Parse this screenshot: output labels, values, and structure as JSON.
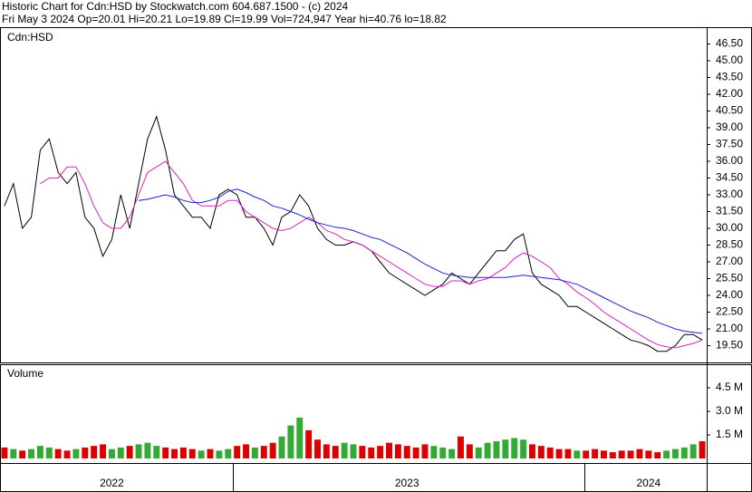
{
  "chart_data": [
    {
      "type": "line",
      "title": "Historic Chart for Cdn:HSD by Stockwatch.com 604.687.1500 - (c) 2024",
      "subtitle": "Fri May  3 2024  Op=20.01  Hi=20.21  Lo=19.89  Cl=19.99  Vol=724,947  Year hi=40.76  lo=18.82",
      "categories": [
        null,
        null,
        null,
        null,
        null,
        null,
        null,
        null,
        null,
        null,
        null,
        null,
        "2022",
        null,
        null,
        null,
        null,
        null,
        null,
        null,
        null,
        null,
        null,
        null,
        null,
        null,
        null,
        null,
        null,
        null,
        null,
        null,
        null,
        null,
        null,
        null,
        null,
        null,
        null,
        null,
        null,
        null,
        null,
        null,
        null,
        "2023",
        null,
        null,
        null,
        null,
        null,
        null,
        null,
        null,
        null,
        null,
        null,
        null,
        null,
        null,
        null,
        null,
        null,
        null,
        null,
        null,
        null,
        null,
        null,
        null,
        null,
        null,
        "2024",
        null,
        null,
        null,
        null,
        null,
        null
      ],
      "series": [
        {
          "name": "Cdn:HSD",
          "color": "#000000",
          "values": [
            32,
            34,
            30,
            31,
            37,
            38,
            35,
            34,
            35,
            31,
            30,
            27.5,
            29,
            33,
            30,
            34,
            38,
            40,
            37,
            33,
            32,
            31,
            31,
            30,
            33,
            33.5,
            33,
            31,
            31,
            30,
            28.5,
            31,
            31.5,
            33,
            32,
            30,
            29,
            28.5,
            28.5,
            28.8,
            28.5,
            28,
            27,
            26,
            25.5,
            25,
            24.5,
            24,
            24.5,
            25,
            26,
            25.5,
            25,
            26,
            27,
            28,
            28,
            29,
            29.5,
            26,
            25,
            24.5,
            24,
            23,
            23,
            22.5,
            22,
            21.5,
            21,
            20.5,
            20,
            19.8,
            19.5,
            19,
            19,
            19.5,
            20.5,
            20.5,
            20
          ]
        },
        {
          "color": "#e020c0",
          "values": [
            null,
            null,
            null,
            null,
            34,
            34.5,
            34.5,
            35.5,
            35.5,
            34,
            32,
            30.5,
            30,
            30,
            31,
            33,
            35,
            35.5,
            36,
            35,
            34,
            32.5,
            32,
            32,
            32,
            32.5,
            32.5,
            31.5,
            31,
            30.5,
            30,
            29.8,
            30,
            30.5,
            31,
            30.5,
            29.8,
            29.5,
            29,
            28.8,
            28.5,
            28,
            27.5,
            27,
            26.5,
            26,
            25.5,
            25,
            24.8,
            24.8,
            25.3,
            25.3,
            25,
            25.3,
            25.5,
            26,
            26.5,
            27.3,
            27.8,
            27.5,
            27,
            26.5,
            25.5,
            25,
            24.3,
            23.8,
            23.2,
            22.5,
            22,
            21.5,
            21,
            20.5,
            20,
            19.6,
            19.4,
            19.3,
            19.5,
            19.7,
            20
          ]
        },
        {
          "color": "#2020d0",
          "values": [
            null,
            null,
            null,
            null,
            null,
            null,
            null,
            null,
            null,
            null,
            null,
            null,
            null,
            null,
            null,
            32.5,
            32.6,
            32.8,
            33,
            32.8,
            32.5,
            32.3,
            32.3,
            32.5,
            32.8,
            33.3,
            33.5,
            33.2,
            32.8,
            32.5,
            32,
            31.8,
            31.5,
            31.2,
            30.8,
            30.5,
            30.3,
            30.1,
            30,
            29.8,
            29.5,
            29.2,
            29,
            28.6,
            28.2,
            27.8,
            27.3,
            26.8,
            26.4,
            26,
            25.8,
            25.7,
            25.6,
            25.6,
            25.6,
            25.6,
            25.6,
            25.7,
            25.8,
            25.7,
            25.6,
            25.5,
            25.4,
            25.2,
            25,
            24.6,
            24.2,
            23.8,
            23.4,
            23,
            22.6,
            22.3,
            22,
            21.6,
            21.3,
            21,
            20.8,
            20.7,
            20.6
          ]
        }
      ],
      "ylim": [
        18,
        48
      ],
      "yticks": [
        {
          "value": 19.5,
          "label": "19.50"
        },
        {
          "value": 21,
          "label": "21.00"
        },
        {
          "value": 22.5,
          "label": "22.50"
        },
        {
          "value": 24,
          "label": "24.00"
        },
        {
          "value": 25.5,
          "label": "25.50"
        },
        {
          "value": 27,
          "label": "27.00"
        },
        {
          "value": 28.5,
          "label": "28.50"
        },
        {
          "value": 30,
          "label": "30.00"
        },
        {
          "value": 31.5,
          "label": "31.50"
        },
        {
          "value": 33,
          "label": "33.00"
        },
        {
          "value": 34.5,
          "label": "34.50"
        },
        {
          "value": 36,
          "label": "36.00"
        },
        {
          "value": 37.5,
          "label": "37.50"
        },
        {
          "value": 39,
          "label": "39.00"
        },
        {
          "value": 40.5,
          "label": "40.50"
        },
        {
          "value": 42,
          "label": "42.00"
        },
        {
          "value": 43.5,
          "label": "43.50"
        },
        {
          "value": 45,
          "label": "45.00"
        },
        {
          "value": 46.5,
          "label": "46.50"
        }
      ],
      "grid": false
    },
    {
      "type": "bar",
      "title": "Volume",
      "up_color": "#33aa33",
      "down_color": "#dd0000",
      "values": [
        0.7,
        0.6,
        0.5,
        0.6,
        0.8,
        0.7,
        0.6,
        0.5,
        0.6,
        0.7,
        0.8,
        0.9,
        0.6,
        0.7,
        0.8,
        0.9,
        1.0,
        0.8,
        0.7,
        0.6,
        0.7,
        0.6,
        0.5,
        0.6,
        0.5,
        0.6,
        0.8,
        0.9,
        0.7,
        0.8,
        1.0,
        1.4,
        2.1,
        2.6,
        1.8,
        1.2,
        0.9,
        0.8,
        1.0,
        0.9,
        0.8,
        0.7,
        0.8,
        1.0,
        0.9,
        0.8,
        0.7,
        0.9,
        0.8,
        0.7,
        0.6,
        1.4,
        0.9,
        0.7,
        1.0,
        1.1,
        1.2,
        1.3,
        1.2,
        0.9,
        0.8,
        0.7,
        0.6,
        0.6,
        0.5,
        0.5,
        0.6,
        0.5,
        0.4,
        0.5,
        0.5,
        0.6,
        0.5,
        0.4,
        0.5,
        0.6,
        0.7,
        0.9,
        1.1
      ],
      "ylim": [
        0,
        6
      ],
      "yticks": [
        {
          "value": 1.5,
          "label": "1.5 M"
        },
        {
          "value": 3,
          "label": "3.0 M"
        },
        {
          "value": 4.5,
          "label": "4.5 M"
        }
      ]
    }
  ]
}
